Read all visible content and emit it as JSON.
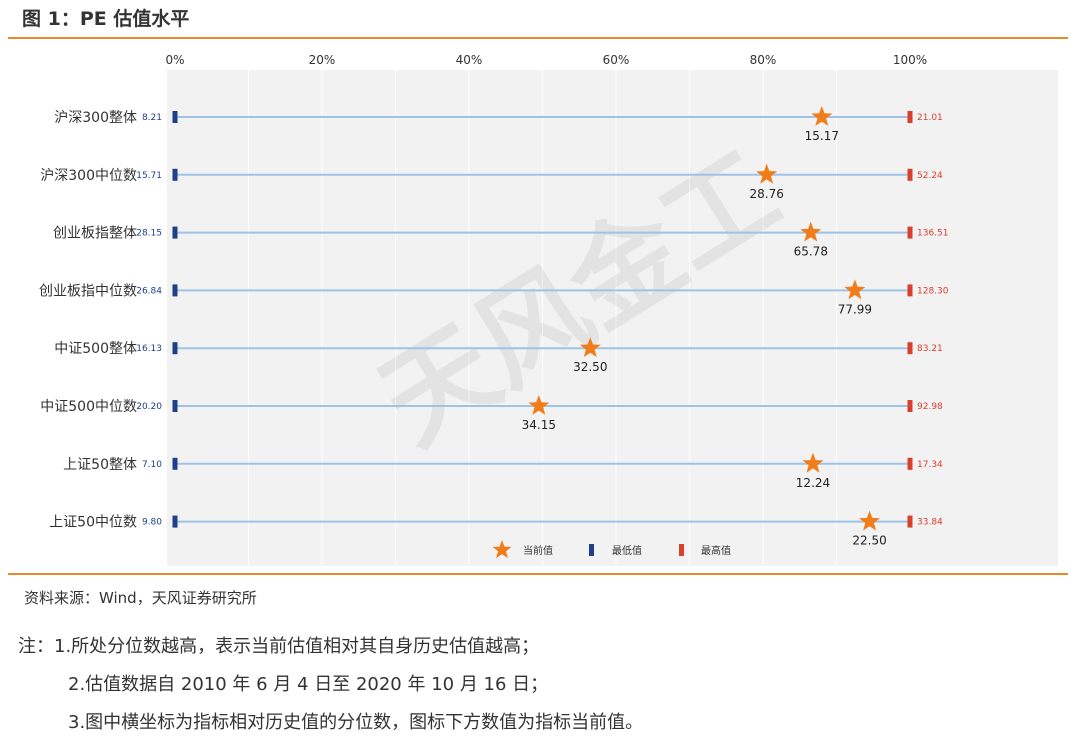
{
  "figure": {
    "title": "图 1：PE 估值水平",
    "source": "资料来源：Wind，天风证券研究所",
    "watermark": "天风金工",
    "notes": [
      "注：1.所处分位数越高，表示当前估值相对其自身历史估值越高；",
      "2.估值数据自 2010 年 6 月 4 日至 2020 年 10 月 16 日；",
      "3.图中横坐标为指标相对历史值的分位数，图标下方数值为指标当前值。"
    ]
  },
  "chart_data": {
    "type": "scatter",
    "title": "",
    "xlabel": "",
    "ylabel": "",
    "xlim": [
      0,
      100
    ],
    "x_ticks": [
      "0%",
      "20%",
      "40%",
      "60%",
      "80%",
      "100%"
    ],
    "x_tick_values": [
      0,
      20,
      40,
      60,
      80,
      100
    ],
    "grid": true,
    "legend_position": "bottom",
    "legend": [
      "当前值",
      "最低值",
      "最高值"
    ],
    "colors": {
      "current": "#f07d1a",
      "min": "#1f3f8a",
      "max": "#d9402b",
      "line": "#9ec3e6",
      "plot_bg": "#f2f2f2",
      "rule": "#e8892e"
    },
    "categories": [
      "沪深300整体",
      "沪深300中位数",
      "创业板指整体",
      "创业板指中位数",
      "中证500整体",
      "中证500中位数",
      "上证50整体",
      "上证50中位数"
    ],
    "series": [
      {
        "name": "当前值",
        "percentile": [
          88,
          80.5,
          86.5,
          92.5,
          56.5,
          49.5,
          86.8,
          94.5
        ],
        "labels": [
          "15.17",
          "28.76",
          "65.78",
          "77.99",
          "32.50",
          "34.15",
          "12.24",
          "22.50"
        ]
      },
      {
        "name": "最低值",
        "values": [
          0,
          0,
          0,
          0,
          0,
          0,
          0,
          0
        ],
        "labels": [
          "8.21",
          "15.71",
          "28.15",
          "26.84",
          "16.13",
          "20.20",
          "7.10",
          "9.80"
        ]
      },
      {
        "name": "最高值",
        "values": [
          100,
          100,
          100,
          100,
          100,
          100,
          100,
          100
        ],
        "labels": [
          "21.01",
          "52.24",
          "136.51",
          "128.30",
          "83.21",
          "92.98",
          "17.34",
          "33.84"
        ]
      }
    ]
  }
}
